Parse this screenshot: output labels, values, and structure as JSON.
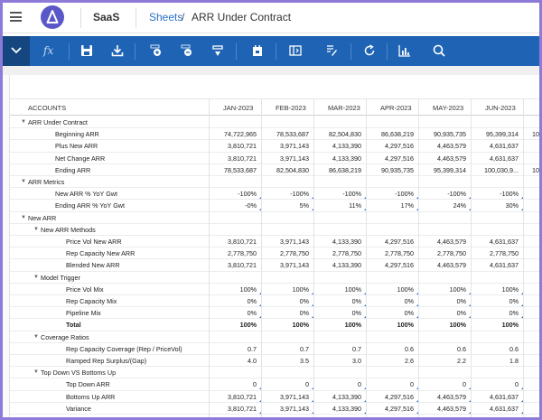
{
  "header": {
    "app_name": "SaaS",
    "breadcrumb_link": "Sheets",
    "breadcrumb_sep": "/",
    "breadcrumb_current": "ARR Under Contract"
  },
  "toolbar": {
    "fx_label": "fx"
  },
  "grid": {
    "accounts_header": "ACCOUNTS",
    "columns": [
      "JAN-2023",
      "FEB-2023",
      "MAR-2023",
      "APR-2023",
      "MAY-2023",
      "JUN-2023"
    ],
    "rows": [
      {
        "label": "ARR Under Contract",
        "level": 0,
        "caret": true,
        "bold": false,
        "values": []
      },
      {
        "label": "Beginning ARR",
        "level": 2,
        "values": [
          "74,722,965",
          "78,533,687",
          "82,504,830",
          "86,638,219",
          "90,935,735",
          "95,399,314"
        ],
        "overflow": "10"
      },
      {
        "label": "Plus New ARR",
        "level": 2,
        "values": [
          "3,810,721",
          "3,971,143",
          "4,133,390",
          "4,297,516",
          "4,463,579",
          "4,631,637"
        ]
      },
      {
        "label": "Net Change ARR",
        "level": 2,
        "values": [
          "3,810,721",
          "3,971,143",
          "4,133,390",
          "4,297,516",
          "4,463,579",
          "4,631,637"
        ]
      },
      {
        "label": "Ending ARR",
        "level": 2,
        "values": [
          "78,533,687",
          "82,504,830",
          "86,638,219",
          "90,935,735",
          "95,399,314",
          "100,030,9..."
        ],
        "overflow": "10"
      },
      {
        "label": "ARR Metrics",
        "level": 0,
        "caret": true,
        "values": []
      },
      {
        "label": "New ARR % YoY Gwt",
        "level": 2,
        "values": [
          "-100%",
          "-100%",
          "-100%",
          "-100%",
          "-100%",
          "-100%"
        ],
        "flag": true
      },
      {
        "label": "Ending ARR % YoY Gwt",
        "level": 2,
        "values": [
          "-0%",
          "5%",
          "11%",
          "17%",
          "24%",
          "30%"
        ],
        "flag": true
      },
      {
        "label": "New ARR",
        "level": 0,
        "caret": true,
        "values": []
      },
      {
        "label": "New ARR Methods",
        "level": 1,
        "caret": true,
        "values": []
      },
      {
        "label": "Price Vol New ARR",
        "level": 3,
        "values": [
          "3,810,721",
          "3,971,143",
          "4,133,390",
          "4,297,516",
          "4,463,579",
          "4,631,637"
        ]
      },
      {
        "label": "Rep Capacity New ARR",
        "level": 3,
        "values": [
          "2,778,750",
          "2,778,750",
          "2,778,750",
          "2,778,750",
          "2,778,750",
          "2,778,750"
        ]
      },
      {
        "label": "Blended New ARR",
        "level": 3,
        "values": [
          "3,810,721",
          "3,971,143",
          "4,133,390",
          "4,297,516",
          "4,463,579",
          "4,631,637"
        ]
      },
      {
        "label": "Model Trigger",
        "level": 1,
        "caret": true,
        "values": []
      },
      {
        "label": "Price Vol Mix",
        "level": 3,
        "values": [
          "100%",
          "100%",
          "100%",
          "100%",
          "100%",
          "100%"
        ],
        "flag": true
      },
      {
        "label": "Rep Capacity Mix",
        "level": 3,
        "values": [
          "0%",
          "0%",
          "0%",
          "0%",
          "0%",
          "0%"
        ],
        "flag": true
      },
      {
        "label": "Pipeline Mix",
        "level": 3,
        "values": [
          "0%",
          "0%",
          "0%",
          "0%",
          "0%",
          "0%"
        ],
        "flag": true
      },
      {
        "label": "Total",
        "level": 3,
        "bold": true,
        "values": [
          "100%",
          "100%",
          "100%",
          "100%",
          "100%",
          "100%"
        ]
      },
      {
        "label": "Coverage Ratios",
        "level": 1,
        "caret": true,
        "values": []
      },
      {
        "label": "Rep Capacity Coverage (Rep / PriceVol)",
        "level": 3,
        "values": [
          "0.7",
          "0.7",
          "0.7",
          "0.6",
          "0.6",
          "0.6"
        ]
      },
      {
        "label": "Ramped Rep Surplus/(Gap)",
        "level": 3,
        "values": [
          "4.0",
          "3.5",
          "3.0",
          "2.6",
          "2.2",
          "1.8"
        ]
      },
      {
        "label": "Top Down VS Bottoms Up",
        "level": 1,
        "caret": true,
        "values": []
      },
      {
        "label": "Top Down ARR",
        "level": 3,
        "values": [
          "0",
          "0",
          "0",
          "0",
          "0",
          "0"
        ],
        "flag": true
      },
      {
        "label": "Bottoms Up ARR",
        "level": 3,
        "values": [
          "3,810,721",
          "3,971,143",
          "4,133,390",
          "4,297,516",
          "4,463,579",
          "4,631,637"
        ],
        "flag": true
      },
      {
        "label": "Variance",
        "level": 3,
        "values": [
          "3,810,721",
          "3,971,143",
          "4,133,390",
          "4,297,516",
          "4,463,579",
          "4,631,637"
        ],
        "flag": true
      }
    ]
  },
  "colors": {
    "toolbar_bg": "#1f64b4",
    "toolbar_active": "#15467f",
    "link": "#2a6fc9",
    "frame_border": "#8e7bd9"
  }
}
